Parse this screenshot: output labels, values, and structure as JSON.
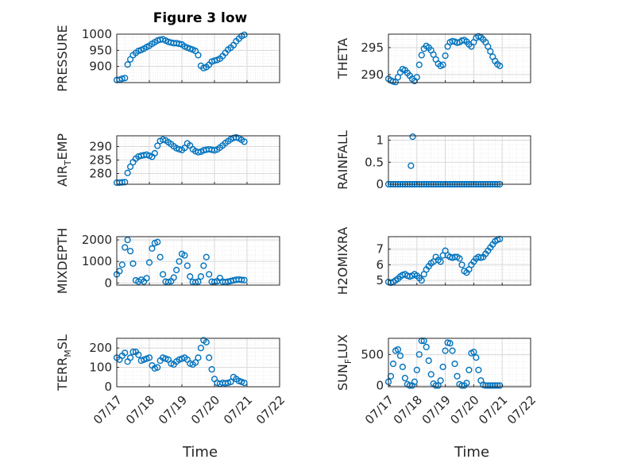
{
  "figure": {
    "title": "Figure 3 low"
  },
  "colors": {
    "marker": "#0072BD",
    "grid_major": "#d8d8d8",
    "grid_minor": "#e6e6e6",
    "axis": "#262626"
  },
  "x_axis": {
    "label": "Time",
    "ticks": [
      "07/17",
      "07/18",
      "07/19",
      "07/20",
      "07/21",
      "07/22"
    ],
    "range": [
      "07/17",
      "07/22"
    ]
  },
  "chart_data": [
    {
      "type": "scatter",
      "id": "pressure",
      "ylabel": {
        "main": "PRESSURE",
        "sub": "",
        "tail": ""
      },
      "ylim": [
        850,
        1000
      ],
      "yticks": [
        900,
        950,
        1000
      ],
      "grid": true,
      "minor_grid": true,
      "x": [
        "07/17 00:00",
        "07/17 02:00",
        "07/17 04:00",
        "07/17 06:00",
        "07/17 08:00",
        "07/17 10:00",
        "07/17 12:00",
        "07/17 14:00",
        "07/17 16:00",
        "07/17 18:00",
        "07/17 20:00",
        "07/17 22:00",
        "07/18 00:00",
        "07/18 02:00",
        "07/18 04:00",
        "07/18 06:00",
        "07/18 08:00",
        "07/18 10:00",
        "07/18 12:00",
        "07/18 14:00",
        "07/18 16:00",
        "07/18 18:00",
        "07/18 20:00",
        "07/18 22:00",
        "07/19 00:00",
        "07/19 02:00",
        "07/19 04:00",
        "07/19 06:00",
        "07/19 08:00",
        "07/19 10:00",
        "07/19 12:00",
        "07/19 14:00",
        "07/19 16:00",
        "07/19 18:00",
        "07/19 20:00",
        "07/19 22:00",
        "07/20 00:00",
        "07/20 02:00",
        "07/20 04:00",
        "07/20 06:00",
        "07/20 08:00",
        "07/20 10:00",
        "07/20 12:00",
        "07/20 14:00",
        "07/20 16:00",
        "07/20 18:00",
        "07/20 20:00",
        "07/20 22:00"
      ],
      "values": [
        858,
        859,
        862,
        864,
        906,
        922,
        935,
        942,
        948,
        951,
        955,
        960,
        964,
        970,
        975,
        980,
        983,
        984,
        980,
        976,
        974,
        972,
        972,
        970,
        968,
        962,
        958,
        955,
        952,
        948,
        935,
        902,
        895,
        898,
        905,
        915,
        918,
        920,
        924,
        932,
        942,
        952,
        958,
        966,
        978,
        986,
        994,
        998
      ]
    },
    {
      "type": "scatter",
      "id": "theta",
      "ylabel": {
        "main": "THETA",
        "sub": "",
        "tail": ""
      },
      "ylim": [
        288.5,
        297.5
      ],
      "yticks": [
        290,
        295
      ],
      "grid": true,
      "minor_grid": true,
      "x": [
        "07/17 00:00",
        "07/17 02:00",
        "07/17 04:00",
        "07/17 06:00",
        "07/17 08:00",
        "07/17 10:00",
        "07/17 12:00",
        "07/17 14:00",
        "07/17 16:00",
        "07/17 18:00",
        "07/17 20:00",
        "07/17 22:00",
        "07/18 00:00",
        "07/18 02:00",
        "07/18 04:00",
        "07/18 06:00",
        "07/18 08:00",
        "07/18 10:00",
        "07/18 12:00",
        "07/18 14:00",
        "07/18 16:00",
        "07/18 18:00",
        "07/18 20:00",
        "07/18 22:00",
        "07/19 00:00",
        "07/19 02:00",
        "07/19 04:00",
        "07/19 06:00",
        "07/19 08:00",
        "07/19 10:00",
        "07/19 12:00",
        "07/19 14:00",
        "07/19 16:00",
        "07/19 18:00",
        "07/19 20:00",
        "07/19 22:00",
        "07/20 00:00",
        "07/20 02:00",
        "07/20 04:00",
        "07/20 06:00",
        "07/20 08:00",
        "07/20 10:00",
        "07/20 12:00",
        "07/20 14:00",
        "07/20 16:00",
        "07/20 18:00",
        "07/20 20:00",
        "07/20 22:00"
      ],
      "values": [
        289.2,
        288.9,
        288.7,
        288.6,
        289.5,
        290.4,
        291.0,
        290.8,
        290.3,
        289.8,
        289.2,
        288.8,
        289.5,
        291.8,
        293.6,
        294.8,
        295.3,
        295.0,
        294.5,
        293.7,
        292.8,
        292.0,
        291.6,
        291.8,
        293.5,
        295.2,
        296.0,
        296.2,
        296.1,
        295.9,
        296.0,
        296.3,
        296.4,
        296.1,
        295.6,
        295.2,
        296.0,
        296.8,
        297.1,
        296.9,
        296.5,
        296.0,
        295.2,
        294.3,
        293.3,
        292.5,
        291.9,
        291.6
      ]
    },
    {
      "type": "scatter",
      "id": "air_temp",
      "ylabel": {
        "main": "AIR",
        "sub": "T",
        "tail": "EMP"
      },
      "ylim": [
        276,
        294
      ],
      "yticks": [
        280,
        285,
        290
      ],
      "grid": true,
      "minor_grid": true,
      "x": [
        "07/17 00:00",
        "07/17 02:00",
        "07/17 04:00",
        "07/17 06:00",
        "07/17 08:00",
        "07/17 10:00",
        "07/17 12:00",
        "07/17 14:00",
        "07/17 16:00",
        "07/17 18:00",
        "07/17 20:00",
        "07/17 22:00",
        "07/18 00:00",
        "07/18 02:00",
        "07/18 04:00",
        "07/18 06:00",
        "07/18 08:00",
        "07/18 10:00",
        "07/18 12:00",
        "07/18 14:00",
        "07/18 16:00",
        "07/18 18:00",
        "07/18 20:00",
        "07/18 22:00",
        "07/19 00:00",
        "07/19 02:00",
        "07/19 04:00",
        "07/19 06:00",
        "07/19 08:00",
        "07/19 10:00",
        "07/19 12:00",
        "07/19 14:00",
        "07/19 16:00",
        "07/19 18:00",
        "07/19 20:00",
        "07/19 22:00",
        "07/20 00:00",
        "07/20 02:00",
        "07/20 04:00",
        "07/20 06:00",
        "07/20 08:00",
        "07/20 10:00",
        "07/20 12:00",
        "07/20 14:00",
        "07/20 16:00",
        "07/20 18:00",
        "07/20 20:00",
        "07/20 22:00"
      ],
      "values": [
        276.6,
        276.6,
        276.7,
        276.8,
        280.2,
        282.5,
        284.2,
        285.5,
        286.3,
        286.6,
        286.8,
        287.0,
        286.6,
        286.2,
        287.5,
        290.3,
        292.1,
        292.6,
        292.3,
        291.6,
        290.9,
        290.1,
        289.4,
        289.0,
        288.7,
        289.5,
        291.2,
        290.4,
        289.0,
        288.3,
        287.9,
        288.1,
        288.6,
        288.8,
        289.0,
        288.8,
        288.6,
        288.9,
        289.6,
        290.4,
        291.3,
        292.0,
        292.7,
        293.2,
        293.4,
        293.1,
        292.5,
        291.8
      ]
    },
    {
      "type": "scatter",
      "id": "rainfall",
      "ylabel": {
        "main": "RAINFALL",
        "sub": "",
        "tail": ""
      },
      "ylim": [
        0,
        1.1
      ],
      "yticks": [
        0,
        0.5,
        1
      ],
      "grid": true,
      "minor_grid": true,
      "x": [
        "07/17 00:00",
        "07/17 02:00",
        "07/17 04:00",
        "07/17 06:00",
        "07/17 08:00",
        "07/17 10:00",
        "07/17 12:00",
        "07/17 14:00",
        "07/17 16:00",
        "07/17 18:00",
        "07/17 20:00",
        "07/17 22:00",
        "07/18 00:00",
        "07/18 02:00",
        "07/18 04:00",
        "07/18 06:00",
        "07/18 08:00",
        "07/18 10:00",
        "07/18 12:00",
        "07/18 14:00",
        "07/18 16:00",
        "07/18 18:00",
        "07/18 20:00",
        "07/18 22:00",
        "07/19 00:00",
        "07/19 02:00",
        "07/19 04:00",
        "07/19 06:00",
        "07/19 08:00",
        "07/19 10:00",
        "07/19 12:00",
        "07/19 14:00",
        "07/19 16:00",
        "07/19 18:00",
        "07/19 20:00",
        "07/19 22:00",
        "07/20 00:00",
        "07/20 02:00",
        "07/20 04:00",
        "07/20 06:00",
        "07/20 08:00",
        "07/20 10:00",
        "07/20 12:00",
        "07/20 14:00",
        "07/20 16:00",
        "07/20 18:00",
        "07/20 20:00",
        "07/20 22:00",
        "07/17 19:00",
        "07/17 20:30"
      ],
      "values": [
        0,
        0,
        0,
        0,
        0,
        0,
        0,
        0,
        0,
        0,
        0,
        0,
        0,
        0,
        0,
        0,
        0,
        0,
        0,
        0,
        0,
        0,
        0,
        0,
        0,
        0,
        0,
        0,
        0,
        0,
        0,
        0,
        0,
        0,
        0,
        0,
        0,
        0,
        0,
        0,
        0,
        0,
        0,
        0,
        0,
        0,
        0,
        0,
        0.42,
        1.08
      ]
    },
    {
      "type": "scatter",
      "id": "mixdepth",
      "ylabel": {
        "main": "MIXDEPTH",
        "sub": "",
        "tail": ""
      },
      "ylim": [
        -100,
        2150
      ],
      "yticks": [
        0,
        1000,
        2000
      ],
      "grid": true,
      "minor_grid": true,
      "x": [
        "07/17 00:00",
        "07/17 02:00",
        "07/17 04:00",
        "07/17 06:00",
        "07/17 08:00",
        "07/17 10:00",
        "07/17 12:00",
        "07/17 14:00",
        "07/17 16:00",
        "07/17 18:00",
        "07/17 20:00",
        "07/17 22:00",
        "07/18 00:00",
        "07/18 02:00",
        "07/18 04:00",
        "07/18 06:00",
        "07/18 08:00",
        "07/18 10:00",
        "07/18 12:00",
        "07/18 14:00",
        "07/18 16:00",
        "07/18 18:00",
        "07/18 20:00",
        "07/18 22:00",
        "07/19 00:00",
        "07/19 02:00",
        "07/19 04:00",
        "07/19 06:00",
        "07/19 08:00",
        "07/19 10:00",
        "07/19 12:00",
        "07/19 14:00",
        "07/19 16:00",
        "07/19 18:00",
        "07/19 20:00",
        "07/19 22:00",
        "07/20 00:00",
        "07/20 02:00",
        "07/20 04:00",
        "07/20 06:00",
        "07/20 08:00",
        "07/20 10:00",
        "07/20 12:00",
        "07/20 14:00",
        "07/20 16:00",
        "07/20 18:00",
        "07/20 20:00",
        "07/20 22:00"
      ],
      "values": [
        400,
        550,
        850,
        1650,
        2000,
        1480,
        900,
        120,
        60,
        150,
        60,
        220,
        950,
        1600,
        1850,
        1900,
        1200,
        400,
        60,
        40,
        80,
        250,
        600,
        1000,
        1350,
        1280,
        800,
        300,
        50,
        30,
        60,
        300,
        800,
        1200,
        400,
        60,
        40,
        80,
        230,
        60,
        40,
        60,
        90,
        120,
        150,
        160,
        140,
        130
      ]
    },
    {
      "type": "scatter",
      "id": "h2omixra",
      "ylabel": {
        "main": "H2OMIXRA",
        "sub": "",
        "tail": ""
      },
      "ylim": [
        4.7,
        7.8
      ],
      "yticks": [
        5,
        6,
        7
      ],
      "grid": true,
      "minor_grid": true,
      "x": [
        "07/17 00:00",
        "07/17 02:00",
        "07/17 04:00",
        "07/17 06:00",
        "07/17 08:00",
        "07/17 10:00",
        "07/17 12:00",
        "07/17 14:00",
        "07/17 16:00",
        "07/17 18:00",
        "07/17 20:00",
        "07/17 22:00",
        "07/18 00:00",
        "07/18 02:00",
        "07/18 04:00",
        "07/18 06:00",
        "07/18 08:00",
        "07/18 10:00",
        "07/18 12:00",
        "07/18 14:00",
        "07/18 16:00",
        "07/18 18:00",
        "07/18 20:00",
        "07/18 22:00",
        "07/19 00:00",
        "07/19 02:00",
        "07/19 04:00",
        "07/19 06:00",
        "07/19 08:00",
        "07/19 10:00",
        "07/19 12:00",
        "07/19 14:00",
        "07/19 16:00",
        "07/19 18:00",
        "07/19 20:00",
        "07/19 22:00",
        "07/20 00:00",
        "07/20 02:00",
        "07/20 04:00",
        "07/20 06:00",
        "07/20 08:00",
        "07/20 10:00",
        "07/20 12:00",
        "07/20 14:00",
        "07/20 16:00",
        "07/20 18:00",
        "07/20 20:00",
        "07/20 22:00"
      ],
      "values": [
        4.9,
        4.85,
        4.9,
        5.0,
        5.1,
        5.25,
        5.35,
        5.4,
        5.3,
        5.25,
        5.3,
        5.4,
        5.3,
        5.15,
        5.0,
        5.4,
        5.7,
        5.9,
        6.1,
        6.2,
        6.5,
        6.3,
        6.2,
        6.6,
        6.9,
        6.6,
        6.5,
        6.45,
        6.5,
        6.5,
        6.4,
        6.0,
        5.6,
        5.5,
        5.7,
        6.0,
        6.2,
        6.4,
        6.5,
        6.45,
        6.5,
        6.7,
        6.9,
        7.1,
        7.3,
        7.5,
        7.6,
        7.65
      ]
    },
    {
      "type": "scatter",
      "id": "terr_msl",
      "ylabel": {
        "main": "TERR",
        "sub": "M",
        "tail": "SL"
      },
      "ylim": [
        0,
        250
      ],
      "yticks": [
        0,
        100,
        200
      ],
      "grid": true,
      "minor_grid": true,
      "x": [
        "07/17 00:00",
        "07/17 02:00",
        "07/17 04:00",
        "07/17 06:00",
        "07/17 08:00",
        "07/17 10:00",
        "07/17 12:00",
        "07/17 14:00",
        "07/17 16:00",
        "07/17 18:00",
        "07/17 20:00",
        "07/17 22:00",
        "07/18 00:00",
        "07/18 02:00",
        "07/18 04:00",
        "07/18 06:00",
        "07/18 08:00",
        "07/18 10:00",
        "07/18 12:00",
        "07/18 14:00",
        "07/18 16:00",
        "07/18 18:00",
        "07/18 20:00",
        "07/18 22:00",
        "07/19 00:00",
        "07/19 02:00",
        "07/19 04:00",
        "07/19 06:00",
        "07/19 08:00",
        "07/19 10:00",
        "07/19 12:00",
        "07/19 14:00",
        "07/19 16:00",
        "07/19 18:00",
        "07/19 20:00",
        "07/19 22:00",
        "07/20 00:00",
        "07/20 02:00",
        "07/20 04:00",
        "07/20 06:00",
        "07/20 08:00",
        "07/20 10:00",
        "07/20 12:00",
        "07/20 14:00",
        "07/20 16:00",
        "07/20 18:00",
        "07/20 20:00",
        "07/20 22:00"
      ],
      "values": [
        150,
        140,
        160,
        175,
        130,
        150,
        180,
        180,
        165,
        135,
        140,
        145,
        150,
        110,
        95,
        100,
        135,
        150,
        145,
        140,
        120,
        115,
        130,
        140,
        145,
        150,
        140,
        120,
        115,
        125,
        150,
        200,
        240,
        230,
        150,
        90,
        40,
        20,
        15,
        20,
        18,
        20,
        25,
        50,
        40,
        30,
        25,
        20
      ]
    },
    {
      "type": "scatter",
      "id": "sun_flux",
      "ylabel": {
        "main": "SUN",
        "sub": "F",
        "tail": "LUX"
      },
      "ylim": [
        -20,
        760
      ],
      "yticks": [
        0,
        500
      ],
      "grid": true,
      "minor_grid": true,
      "x": [
        "07/17 00:00",
        "07/17 02:00",
        "07/17 04:00",
        "07/17 06:00",
        "07/17 08:00",
        "07/17 10:00",
        "07/17 12:00",
        "07/17 14:00",
        "07/17 16:00",
        "07/17 18:00",
        "07/17 20:00",
        "07/17 22:00",
        "07/18 00:00",
        "07/18 02:00",
        "07/18 04:00",
        "07/18 06:00",
        "07/18 08:00",
        "07/18 10:00",
        "07/18 12:00",
        "07/18 14:00",
        "07/18 16:00",
        "07/18 18:00",
        "07/18 20:00",
        "07/18 22:00",
        "07/19 00:00",
        "07/19 02:00",
        "07/19 04:00",
        "07/19 06:00",
        "07/19 08:00",
        "07/19 10:00",
        "07/19 12:00",
        "07/19 14:00",
        "07/19 16:00",
        "07/19 18:00",
        "07/19 20:00",
        "07/19 22:00",
        "07/20 00:00",
        "07/20 02:00",
        "07/20 04:00",
        "07/20 06:00",
        "07/20 08:00",
        "07/20 10:00",
        "07/20 12:00",
        "07/20 14:00",
        "07/20 16:00",
        "07/20 18:00",
        "07/20 20:00",
        "07/20 22:00"
      ],
      "values": [
        60,
        150,
        350,
        560,
        580,
        480,
        300,
        120,
        20,
        0,
        0,
        60,
        250,
        500,
        720,
        720,
        620,
        400,
        180,
        30,
        0,
        0,
        80,
        300,
        560,
        690,
        680,
        560,
        350,
        150,
        20,
        0,
        0,
        40,
        250,
        520,
        540,
        450,
        250,
        80,
        10,
        0,
        0,
        0,
        0,
        0,
        0,
        0
      ]
    }
  ]
}
